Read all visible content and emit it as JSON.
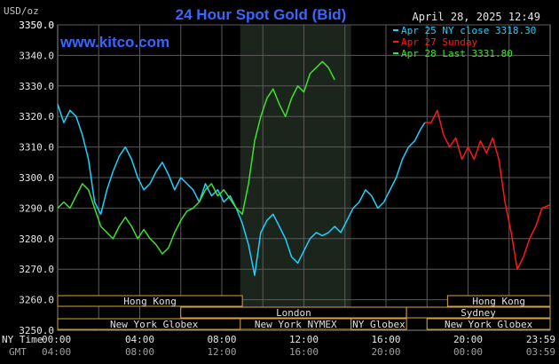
{
  "chart_data": {
    "type": "line",
    "title": "24 Hour Spot Gold (Bid)",
    "watermark": "www.kitco.com",
    "date_label": "April 28, 2025 12:49",
    "ylabel": "USD/oz",
    "ylim": [
      3250,
      3350
    ],
    "y_ticks": [
      3260,
      3270,
      3280,
      3290,
      3300,
      3310,
      3320,
      3330,
      3340,
      3350
    ],
    "y_tick_labels": [
      "3260.0",
      "3270.0",
      "3280.0",
      "3290.0",
      "3300.0",
      "3310.0",
      "3320.0",
      "3330.0",
      "3340.0",
      "3350.0"
    ],
    "y_top_label": "3350.0",
    "y_bottom_label": "3250.0",
    "xlim": [
      0,
      24
    ],
    "x_tick_hours": [
      0,
      4,
      8,
      12,
      16,
      20,
      24
    ],
    "x_ticks_ny": [
      "00:00",
      "04:00",
      "08:00",
      "12:00",
      "16:00",
      "20:00",
      "23:59"
    ],
    "x_ticks_gmt": [
      "04:00",
      "08:00",
      "12:00",
      "16:00",
      "20:00",
      "00:00",
      "03:59"
    ],
    "x_row_label_ny": "NY Time",
    "x_row_label_gmt": "GMT",
    "shaded_region_hours": [
      8.9,
      14.3
    ],
    "grid": true,
    "legend_placement": "top-right",
    "series": [
      {
        "name": "Apr 25 NY close 3318.30",
        "color": "#20d0ff",
        "x": [
          0,
          0.3,
          0.6,
          0.9,
          1.2,
          1.5,
          1.8,
          2.1,
          2.4,
          2.7,
          3.0,
          3.3,
          3.6,
          3.9,
          4.2,
          4.5,
          4.8,
          5.1,
          5.4,
          5.7,
          6.0,
          6.3,
          6.6,
          6.9,
          7.2,
          7.5,
          7.8,
          8.1,
          8.4,
          8.7,
          9.0,
          9.3,
          9.6,
          9.9,
          10.2,
          10.5,
          10.8,
          11.1,
          11.4,
          11.7,
          12.0,
          12.3,
          12.6,
          12.9,
          13.2,
          13.5,
          13.8,
          14.1,
          14.4,
          14.7,
          15.0,
          15.3,
          15.6,
          15.9,
          16.2,
          16.5,
          16.8,
          17.1,
          17.4,
          17.7,
          17.9
        ],
        "values": [
          3324,
          3318,
          3322,
          3320,
          3314,
          3306,
          3292,
          3288,
          3296,
          3302,
          3307,
          3310,
          3306,
          3300,
          3296,
          3298,
          3302,
          3305,
          3301,
          3296,
          3300,
          3298,
          3296,
          3292,
          3298,
          3294,
          3296,
          3292,
          3294,
          3290,
          3285,
          3278,
          3268,
          3282,
          3286,
          3288,
          3284,
          3280,
          3274,
          3272,
          3276,
          3280,
          3282,
          3281,
          3282,
          3284,
          3282,
          3286,
          3290,
          3292,
          3296,
          3294,
          3290,
          3292,
          3296,
          3300,
          3306,
          3310,
          3312,
          3316,
          3318
        ]
      },
      {
        "name": "Apr 27 Sunday",
        "color": "#ff1818",
        "x": [
          17.9,
          18.2,
          18.5,
          18.8,
          19.1,
          19.4,
          19.7,
          20.0,
          20.3,
          20.6,
          20.9,
          21.2,
          21.5,
          21.8,
          22.1,
          22.4,
          22.7,
          23.0,
          23.3,
          23.6,
          23.98
        ],
        "values": [
          3318,
          3318,
          3322,
          3314,
          3310,
          3313,
          3306,
          3310,
          3306,
          3312,
          3308,
          3313,
          3306,
          3292,
          3282,
          3270,
          3274,
          3280,
          3284,
          3290,
          3291
        ]
      },
      {
        "name": "Apr 28 Last 3331.80",
        "color": "#40e030",
        "x": [
          0,
          0.3,
          0.6,
          0.9,
          1.2,
          1.5,
          1.8,
          2.1,
          2.4,
          2.7,
          3.0,
          3.3,
          3.6,
          3.9,
          4.2,
          4.5,
          4.8,
          5.1,
          5.4,
          5.7,
          6.0,
          6.3,
          6.6,
          6.9,
          7.2,
          7.5,
          7.8,
          8.1,
          8.4,
          8.7,
          9.0,
          9.3,
          9.6,
          9.9,
          10.2,
          10.5,
          10.8,
          11.1,
          11.4,
          11.7,
          12.0,
          12.3,
          12.6,
          12.9,
          13.2,
          13.5
        ],
        "values": [
          3290,
          3292,
          3290,
          3294,
          3298,
          3296,
          3290,
          3284,
          3282,
          3280,
          3284,
          3287,
          3284,
          3280,
          3283,
          3280,
          3278,
          3275,
          3277,
          3282,
          3286,
          3289,
          3290,
          3292,
          3296,
          3298,
          3294,
          3296,
          3293,
          3290,
          3288,
          3298,
          3312,
          3320,
          3326,
          3329,
          3324,
          3320,
          3326,
          3330,
          3328,
          3334,
          3336,
          3338,
          3336,
          3332
        ]
      }
    ],
    "session_bars": [
      {
        "label": "Hong Kong",
        "start": 0,
        "end": 9.0,
        "row": 0
      },
      {
        "label": "London",
        "start": 6.0,
        "end": 17.0,
        "row": 1
      },
      {
        "label": "New York Globex",
        "start": 0,
        "end": 9.4,
        "row": 2
      },
      {
        "label": "New York NYMEX",
        "start": 8.9,
        "end": 14.3,
        "row": 2
      },
      {
        "label": "NY Globex",
        "start": 14.3,
        "end": 17.0,
        "row": 2
      },
      {
        "label": "Hong Kong",
        "start": 19.0,
        "end": 24.0,
        "row": 0
      },
      {
        "label": "Sydney",
        "start": 17.0,
        "end": 24.0,
        "row": 1
      },
      {
        "label": "New York Globex",
        "start": 18.0,
        "end": 24.0,
        "row": 2
      }
    ]
  }
}
